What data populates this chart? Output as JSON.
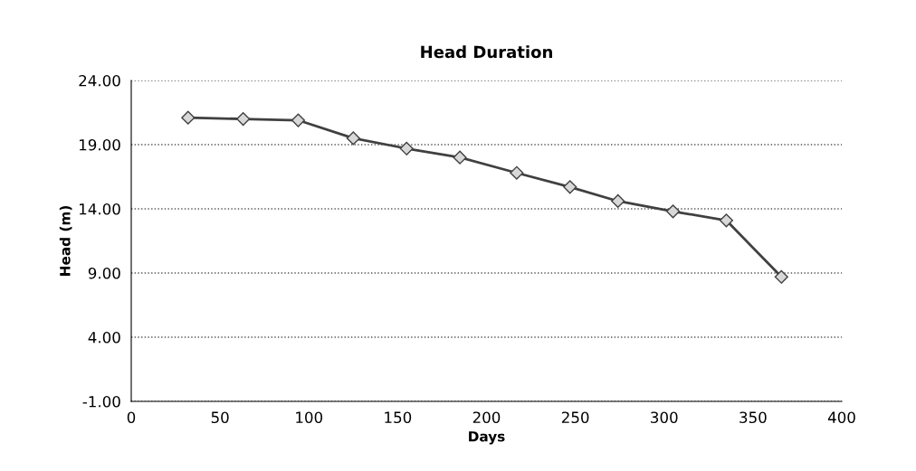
{
  "chart_data": {
    "type": "line",
    "title": "Head Duration",
    "xlabel": "Days",
    "ylabel": "Head (m)",
    "x": [
      32,
      63,
      94,
      125,
      155,
      185,
      217,
      247,
      274,
      305,
      335,
      366
    ],
    "series": [
      {
        "color": "#404040",
        "values": [
          21.1,
          21.0,
          20.9,
          19.5,
          18.7,
          18.0,
          16.8,
          15.7,
          14.6,
          13.8,
          13.1,
          8.7
        ]
      }
    ],
    "xlim": [
      0,
      400
    ],
    "xticks": [
      0,
      50,
      100,
      150,
      200,
      250,
      300,
      350,
      400
    ],
    "ylim": [
      -1,
      24
    ],
    "yticks": [
      {
        "value": -1,
        "label": "-1.00"
      },
      {
        "value": 4,
        "label": "4.00"
      },
      {
        "value": 9,
        "label": "9.00"
      },
      {
        "value": 14,
        "label": "14.00"
      },
      {
        "value": 19,
        "label": "19.00"
      },
      {
        "value": 24,
        "label": "24.00"
      }
    ],
    "grid": "y",
    "marker": "diamond",
    "line_style": "solid"
  }
}
